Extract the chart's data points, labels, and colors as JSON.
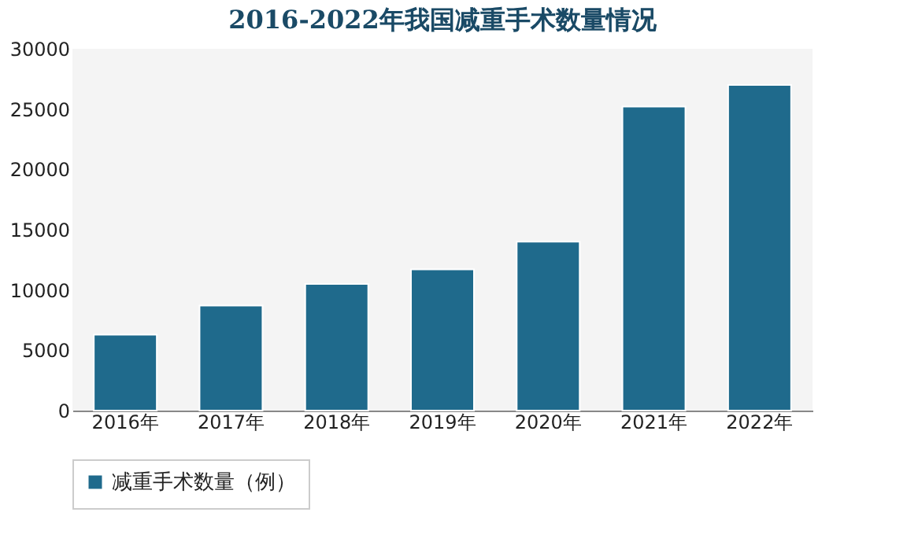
{
  "chart_data": {
    "type": "bar",
    "title": "2016-2022年我国减重手术数量情况",
    "categories": [
      "2016年",
      "2017年",
      "2018年",
      "2019年",
      "2020年",
      "2021年",
      "2022年"
    ],
    "series": [
      {
        "name": "减重手术数量（例）",
        "color": "#1f6a8c",
        "values": [
          6300,
          8700,
          10500,
          11700,
          14000,
          25200,
          27000
        ]
      }
    ],
    "ylim": [
      0,
      30000
    ],
    "yticks": [
      0,
      5000,
      10000,
      15000,
      20000,
      25000,
      30000
    ],
    "grid": false,
    "legend": "bottom"
  }
}
